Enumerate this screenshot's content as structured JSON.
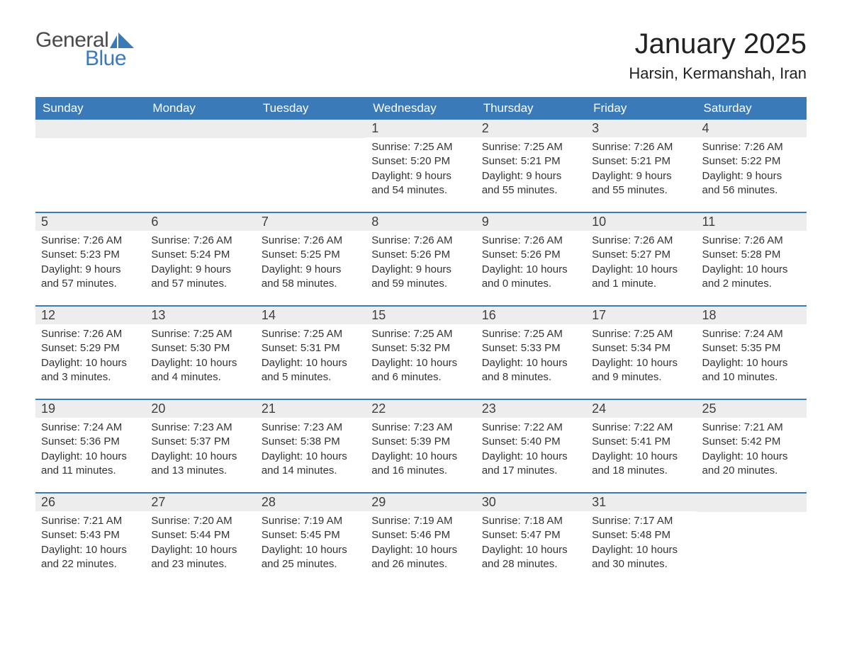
{
  "logo": {
    "text1": "General",
    "text2": "Blue",
    "accent_color": "#3a7ab8",
    "text_color": "#4a4a4a"
  },
  "title": "January 2025",
  "location": "Harsin, Kermanshah, Iran",
  "colors": {
    "header_bg": "#3a7ab8",
    "header_text": "#ffffff",
    "daynum_bg": "#ededed",
    "row_border": "#3a7ab8",
    "body_text": "#333333"
  },
  "day_headers": [
    "Sunday",
    "Monday",
    "Tuesday",
    "Wednesday",
    "Thursday",
    "Friday",
    "Saturday"
  ],
  "weeks": [
    [
      null,
      null,
      null,
      {
        "n": "1",
        "sunrise": "Sunrise: 7:25 AM",
        "sunset": "Sunset: 5:20 PM",
        "d1": "Daylight: 9 hours",
        "d2": "and 54 minutes."
      },
      {
        "n": "2",
        "sunrise": "Sunrise: 7:25 AM",
        "sunset": "Sunset: 5:21 PM",
        "d1": "Daylight: 9 hours",
        "d2": "and 55 minutes."
      },
      {
        "n": "3",
        "sunrise": "Sunrise: 7:26 AM",
        "sunset": "Sunset: 5:21 PM",
        "d1": "Daylight: 9 hours",
        "d2": "and 55 minutes."
      },
      {
        "n": "4",
        "sunrise": "Sunrise: 7:26 AM",
        "sunset": "Sunset: 5:22 PM",
        "d1": "Daylight: 9 hours",
        "d2": "and 56 minutes."
      }
    ],
    [
      {
        "n": "5",
        "sunrise": "Sunrise: 7:26 AM",
        "sunset": "Sunset: 5:23 PM",
        "d1": "Daylight: 9 hours",
        "d2": "and 57 minutes."
      },
      {
        "n": "6",
        "sunrise": "Sunrise: 7:26 AM",
        "sunset": "Sunset: 5:24 PM",
        "d1": "Daylight: 9 hours",
        "d2": "and 57 minutes."
      },
      {
        "n": "7",
        "sunrise": "Sunrise: 7:26 AM",
        "sunset": "Sunset: 5:25 PM",
        "d1": "Daylight: 9 hours",
        "d2": "and 58 minutes."
      },
      {
        "n": "8",
        "sunrise": "Sunrise: 7:26 AM",
        "sunset": "Sunset: 5:26 PM",
        "d1": "Daylight: 9 hours",
        "d2": "and 59 minutes."
      },
      {
        "n": "9",
        "sunrise": "Sunrise: 7:26 AM",
        "sunset": "Sunset: 5:26 PM",
        "d1": "Daylight: 10 hours",
        "d2": "and 0 minutes."
      },
      {
        "n": "10",
        "sunrise": "Sunrise: 7:26 AM",
        "sunset": "Sunset: 5:27 PM",
        "d1": "Daylight: 10 hours",
        "d2": "and 1 minute."
      },
      {
        "n": "11",
        "sunrise": "Sunrise: 7:26 AM",
        "sunset": "Sunset: 5:28 PM",
        "d1": "Daylight: 10 hours",
        "d2": "and 2 minutes."
      }
    ],
    [
      {
        "n": "12",
        "sunrise": "Sunrise: 7:26 AM",
        "sunset": "Sunset: 5:29 PM",
        "d1": "Daylight: 10 hours",
        "d2": "and 3 minutes."
      },
      {
        "n": "13",
        "sunrise": "Sunrise: 7:25 AM",
        "sunset": "Sunset: 5:30 PM",
        "d1": "Daylight: 10 hours",
        "d2": "and 4 minutes."
      },
      {
        "n": "14",
        "sunrise": "Sunrise: 7:25 AM",
        "sunset": "Sunset: 5:31 PM",
        "d1": "Daylight: 10 hours",
        "d2": "and 5 minutes."
      },
      {
        "n": "15",
        "sunrise": "Sunrise: 7:25 AM",
        "sunset": "Sunset: 5:32 PM",
        "d1": "Daylight: 10 hours",
        "d2": "and 6 minutes."
      },
      {
        "n": "16",
        "sunrise": "Sunrise: 7:25 AM",
        "sunset": "Sunset: 5:33 PM",
        "d1": "Daylight: 10 hours",
        "d2": "and 8 minutes."
      },
      {
        "n": "17",
        "sunrise": "Sunrise: 7:25 AM",
        "sunset": "Sunset: 5:34 PM",
        "d1": "Daylight: 10 hours",
        "d2": "and 9 minutes."
      },
      {
        "n": "18",
        "sunrise": "Sunrise: 7:24 AM",
        "sunset": "Sunset: 5:35 PM",
        "d1": "Daylight: 10 hours",
        "d2": "and 10 minutes."
      }
    ],
    [
      {
        "n": "19",
        "sunrise": "Sunrise: 7:24 AM",
        "sunset": "Sunset: 5:36 PM",
        "d1": "Daylight: 10 hours",
        "d2": "and 11 minutes."
      },
      {
        "n": "20",
        "sunrise": "Sunrise: 7:23 AM",
        "sunset": "Sunset: 5:37 PM",
        "d1": "Daylight: 10 hours",
        "d2": "and 13 minutes."
      },
      {
        "n": "21",
        "sunrise": "Sunrise: 7:23 AM",
        "sunset": "Sunset: 5:38 PM",
        "d1": "Daylight: 10 hours",
        "d2": "and 14 minutes."
      },
      {
        "n": "22",
        "sunrise": "Sunrise: 7:23 AM",
        "sunset": "Sunset: 5:39 PM",
        "d1": "Daylight: 10 hours",
        "d2": "and 16 minutes."
      },
      {
        "n": "23",
        "sunrise": "Sunrise: 7:22 AM",
        "sunset": "Sunset: 5:40 PM",
        "d1": "Daylight: 10 hours",
        "d2": "and 17 minutes."
      },
      {
        "n": "24",
        "sunrise": "Sunrise: 7:22 AM",
        "sunset": "Sunset: 5:41 PM",
        "d1": "Daylight: 10 hours",
        "d2": "and 18 minutes."
      },
      {
        "n": "25",
        "sunrise": "Sunrise: 7:21 AM",
        "sunset": "Sunset: 5:42 PM",
        "d1": "Daylight: 10 hours",
        "d2": "and 20 minutes."
      }
    ],
    [
      {
        "n": "26",
        "sunrise": "Sunrise: 7:21 AM",
        "sunset": "Sunset: 5:43 PM",
        "d1": "Daylight: 10 hours",
        "d2": "and 22 minutes."
      },
      {
        "n": "27",
        "sunrise": "Sunrise: 7:20 AM",
        "sunset": "Sunset: 5:44 PM",
        "d1": "Daylight: 10 hours",
        "d2": "and 23 minutes."
      },
      {
        "n": "28",
        "sunrise": "Sunrise: 7:19 AM",
        "sunset": "Sunset: 5:45 PM",
        "d1": "Daylight: 10 hours",
        "d2": "and 25 minutes."
      },
      {
        "n": "29",
        "sunrise": "Sunrise: 7:19 AM",
        "sunset": "Sunset: 5:46 PM",
        "d1": "Daylight: 10 hours",
        "d2": "and 26 minutes."
      },
      {
        "n": "30",
        "sunrise": "Sunrise: 7:18 AM",
        "sunset": "Sunset: 5:47 PM",
        "d1": "Daylight: 10 hours",
        "d2": "and 28 minutes."
      },
      {
        "n": "31",
        "sunrise": "Sunrise: 7:17 AM",
        "sunset": "Sunset: 5:48 PM",
        "d1": "Daylight: 10 hours",
        "d2": "and 30 minutes."
      },
      null
    ]
  ]
}
